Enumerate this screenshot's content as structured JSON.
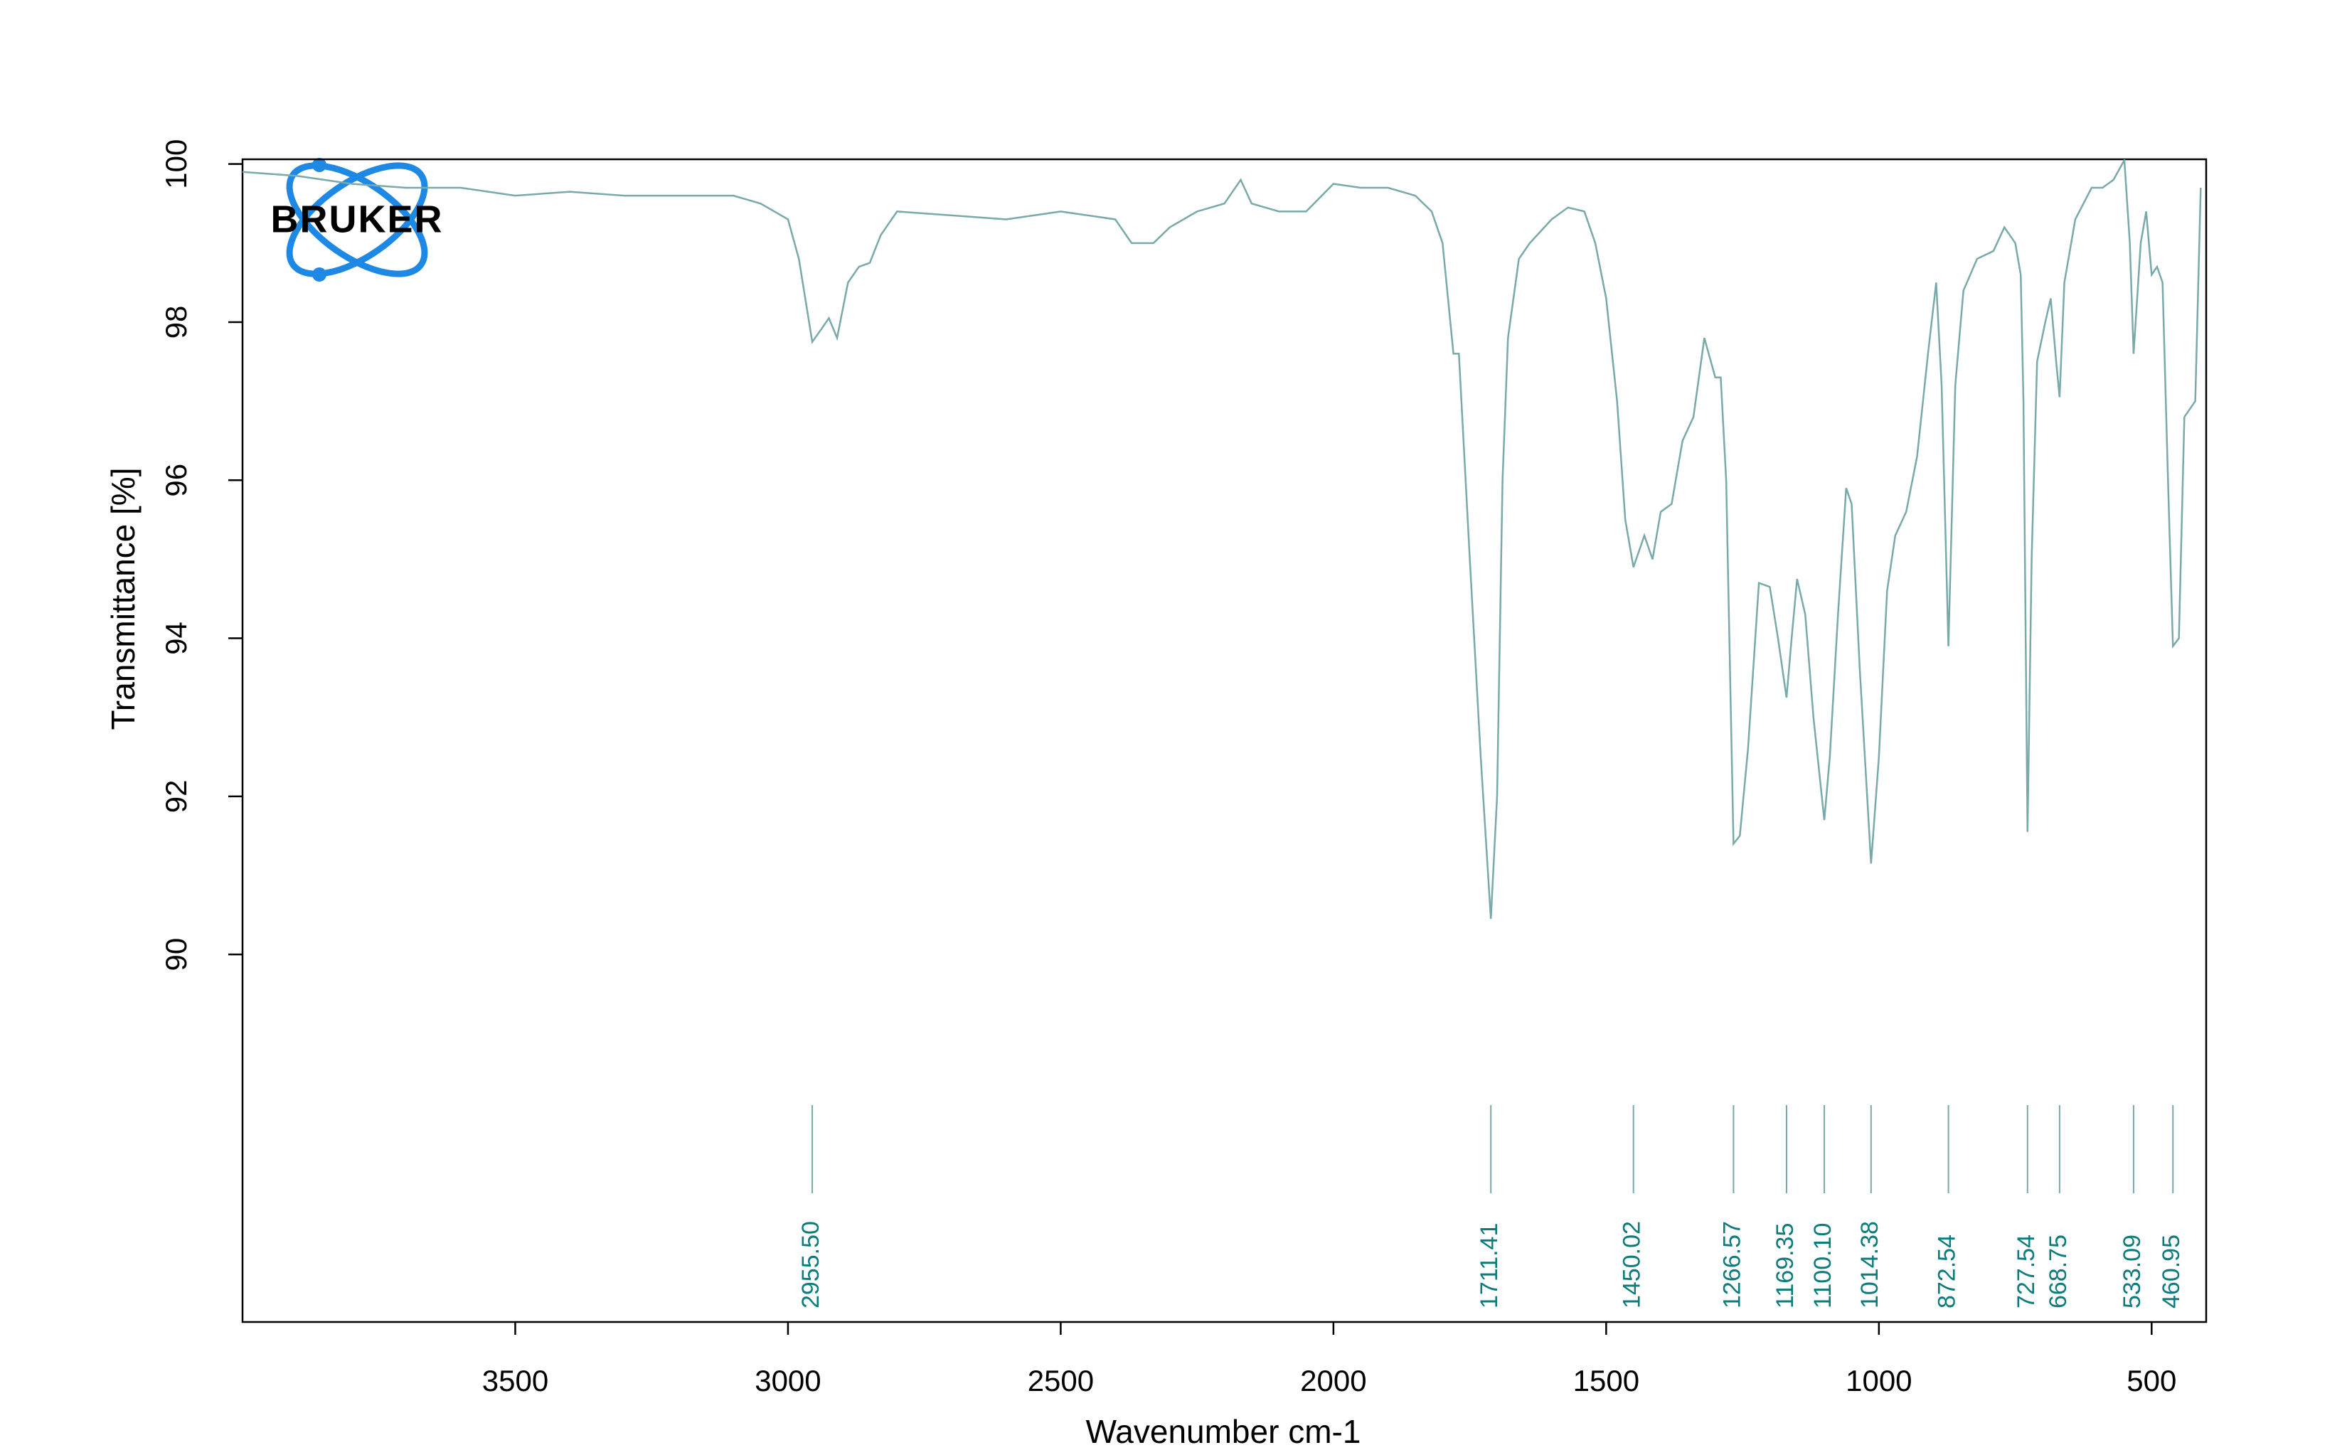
{
  "chart_data": {
    "type": "line",
    "logo_text": "BRUKER",
    "y_label": "Transmittance [%]",
    "x_label": "Wavenumber cm-1",
    "xlim": [
      4000,
      400
    ],
    "ylim": [
      85.35,
      100.06
    ],
    "xticks": [
      3500,
      3000,
      2500,
      2000,
      1500,
      1000,
      500
    ],
    "yticks": [
      90,
      92,
      94,
      96,
      98,
      100
    ],
    "color": "#7aa9a9",
    "peak_color": "#0b7b7b",
    "x": [
      4000,
      3900,
      3800,
      3700,
      3600,
      3500,
      3400,
      3300,
      3200,
      3100,
      3050,
      3000,
      2980,
      2955.5,
      2940,
      2925,
      2910,
      2890,
      2870,
      2850,
      2830,
      2800,
      2700,
      2600,
      2500,
      2450,
      2400,
      2370,
      2330,
      2300,
      2250,
      2200,
      2170,
      2150,
      2100,
      2050,
      2000,
      1950,
      1900,
      1850,
      1820,
      1800,
      1780,
      1770,
      1750,
      1730,
      1711.41,
      1700,
      1690,
      1680,
      1660,
      1640,
      1600,
      1570,
      1540,
      1520,
      1500,
      1480,
      1465,
      1450,
      1430,
      1415,
      1400,
      1380,
      1360,
      1340,
      1320,
      1300,
      1290,
      1280,
      1266.57,
      1255,
      1240,
      1220,
      1200,
      1185,
      1169.35,
      1160,
      1150,
      1135,
      1120,
      1100.1,
      1090,
      1075,
      1060,
      1050,
      1035,
      1014.38,
      1000,
      985,
      970,
      950,
      930,
      910,
      895,
      885,
      872.54,
      860,
      845,
      820,
      790,
      770,
      750,
      740,
      735,
      727.54,
      720,
      710,
      695,
      685,
      675,
      668.75,
      660,
      640,
      610,
      590,
      570,
      550,
      540,
      533.09,
      520,
      510,
      500,
      490,
      480,
      470,
      460.95,
      450,
      440,
      420,
      410
    ],
    "values": [
      99.9,
      99.85,
      99.75,
      99.7,
      99.7,
      99.6,
      99.65,
      99.6,
      99.6,
      99.6,
      99.5,
      99.3,
      98.8,
      97.75,
      97.9,
      98.05,
      97.8,
      98.5,
      98.7,
      98.75,
      99.1,
      99.4,
      99.35,
      99.3,
      99.4,
      99.35,
      99.3,
      99.0,
      99.0,
      99.2,
      99.4,
      99.5,
      99.8,
      99.5,
      99.4,
      99.4,
      99.75,
      99.7,
      99.7,
      99.6,
      99.4,
      99.0,
      97.6,
      97.6,
      95.0,
      92.5,
      90.45,
      92.0,
      96.0,
      97.8,
      98.8,
      99.0,
      99.3,
      99.45,
      99.4,
      99.0,
      98.3,
      97.0,
      95.5,
      94.9,
      95.3,
      95.0,
      95.6,
      95.7,
      96.5,
      96.8,
      97.8,
      97.3,
      97.3,
      96.0,
      91.4,
      91.5,
      92.6,
      94.7,
      94.65,
      94.0,
      93.25,
      94.0,
      94.75,
      94.3,
      93.0,
      91.7,
      92.5,
      94.3,
      95.9,
      95.7,
      93.6,
      91.15,
      92.5,
      94.6,
      95.3,
      95.6,
      96.3,
      97.6,
      98.5,
      97.2,
      93.9,
      97.2,
      98.4,
      98.8,
      98.9,
      99.2,
      99.0,
      98.6,
      97.0,
      91.55,
      95.0,
      97.5,
      98.0,
      98.3,
      97.5,
      97.05,
      98.5,
      99.3,
      99.7,
      99.7,
      99.8,
      100.05,
      99.0,
      97.6,
      99.0,
      99.4,
      98.6,
      98.7,
      98.5,
      96.0,
      93.9,
      94.0,
      96.8,
      97.0,
      99.7
    ],
    "peaks": [
      {
        "value": 2955.5,
        "label": "2955.50"
      },
      {
        "value": 1711.41,
        "label": "1711.41"
      },
      {
        "value": 1450.02,
        "label": "1450.02"
      },
      {
        "value": 1266.57,
        "label": "1266.57"
      },
      {
        "value": 1169.35,
        "label": "1169.35"
      },
      {
        "value": 1100.1,
        "label": "1100.10"
      },
      {
        "value": 1014.38,
        "label": "1014.38"
      },
      {
        "value": 872.54,
        "label": "872.54"
      },
      {
        "value": 727.54,
        "label": "727.54"
      },
      {
        "value": 668.75,
        "label": "668.75"
      },
      {
        "value": 533.09,
        "label": "533.09"
      },
      {
        "value": 460.95,
        "label": "460.95"
      }
    ]
  }
}
